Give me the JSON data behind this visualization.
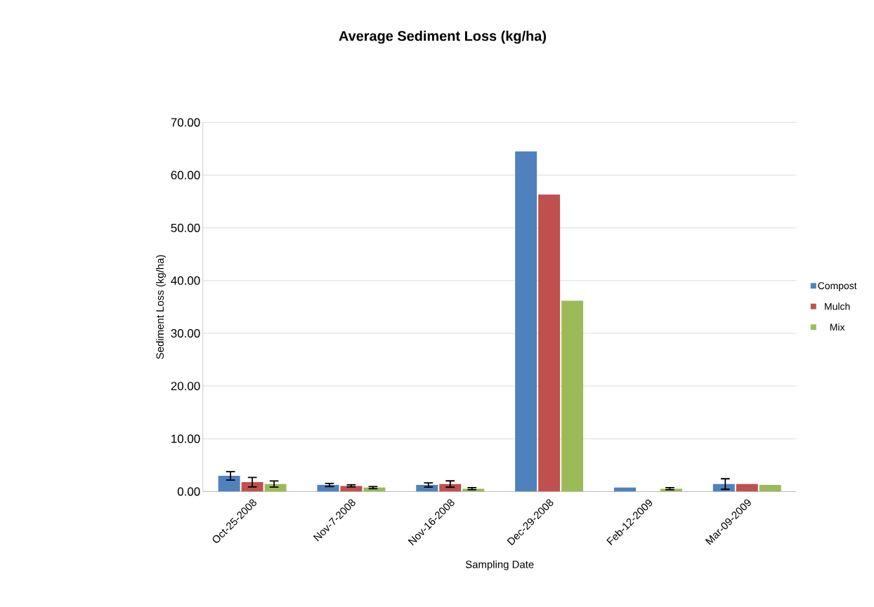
{
  "chart_data": {
    "type": "bar",
    "title": "Average Sediment Loss (kg/ha)",
    "xlabel": "Sampling Date",
    "ylabel": "Sediment Loss (kg/ha)",
    "categories": [
      "Oct-25-2008",
      "Nov-7-2008",
      "Nov-16-2008",
      "Dec-29-2008",
      "Feb-12-2009",
      "Mar-09-2009"
    ],
    "series": [
      {
        "name": "Compost",
        "color": "#4f81bd",
        "values": [
          2.97,
          1.24,
          1.24,
          64.5,
          0.75,
          1.42
        ],
        "errors": [
          0.8,
          0.3,
          0.4,
          null,
          null,
          1.0
        ]
      },
      {
        "name": "Mulch",
        "color": "#c0504d",
        "values": [
          1.77,
          1.06,
          1.42,
          56.3,
          0,
          1.42
        ],
        "errors": [
          0.9,
          0.2,
          0.6,
          null,
          null,
          null
        ]
      },
      {
        "name": "Mix",
        "color": "#9bbb59",
        "values": [
          1.42,
          0.75,
          0.53,
          36.2,
          0.53,
          1.24
        ],
        "errors": [
          0.57,
          0.2,
          0.2,
          null,
          0.2,
          null
        ]
      }
    ],
    "ylim": [
      0,
      70
    ],
    "yticks": [
      {
        "value": 0,
        "label": "0.00"
      },
      {
        "value": 10,
        "label": "10.00"
      },
      {
        "value": 20,
        "label": "20.00"
      },
      {
        "value": 30,
        "label": "30.00"
      },
      {
        "value": 40,
        "label": "40.00"
      },
      {
        "value": 50,
        "label": "50.00"
      },
      {
        "value": 60,
        "label": "60.00"
      },
      {
        "value": 70,
        "label": "70.00"
      }
    ],
    "grid": "y",
    "legend": "right"
  }
}
